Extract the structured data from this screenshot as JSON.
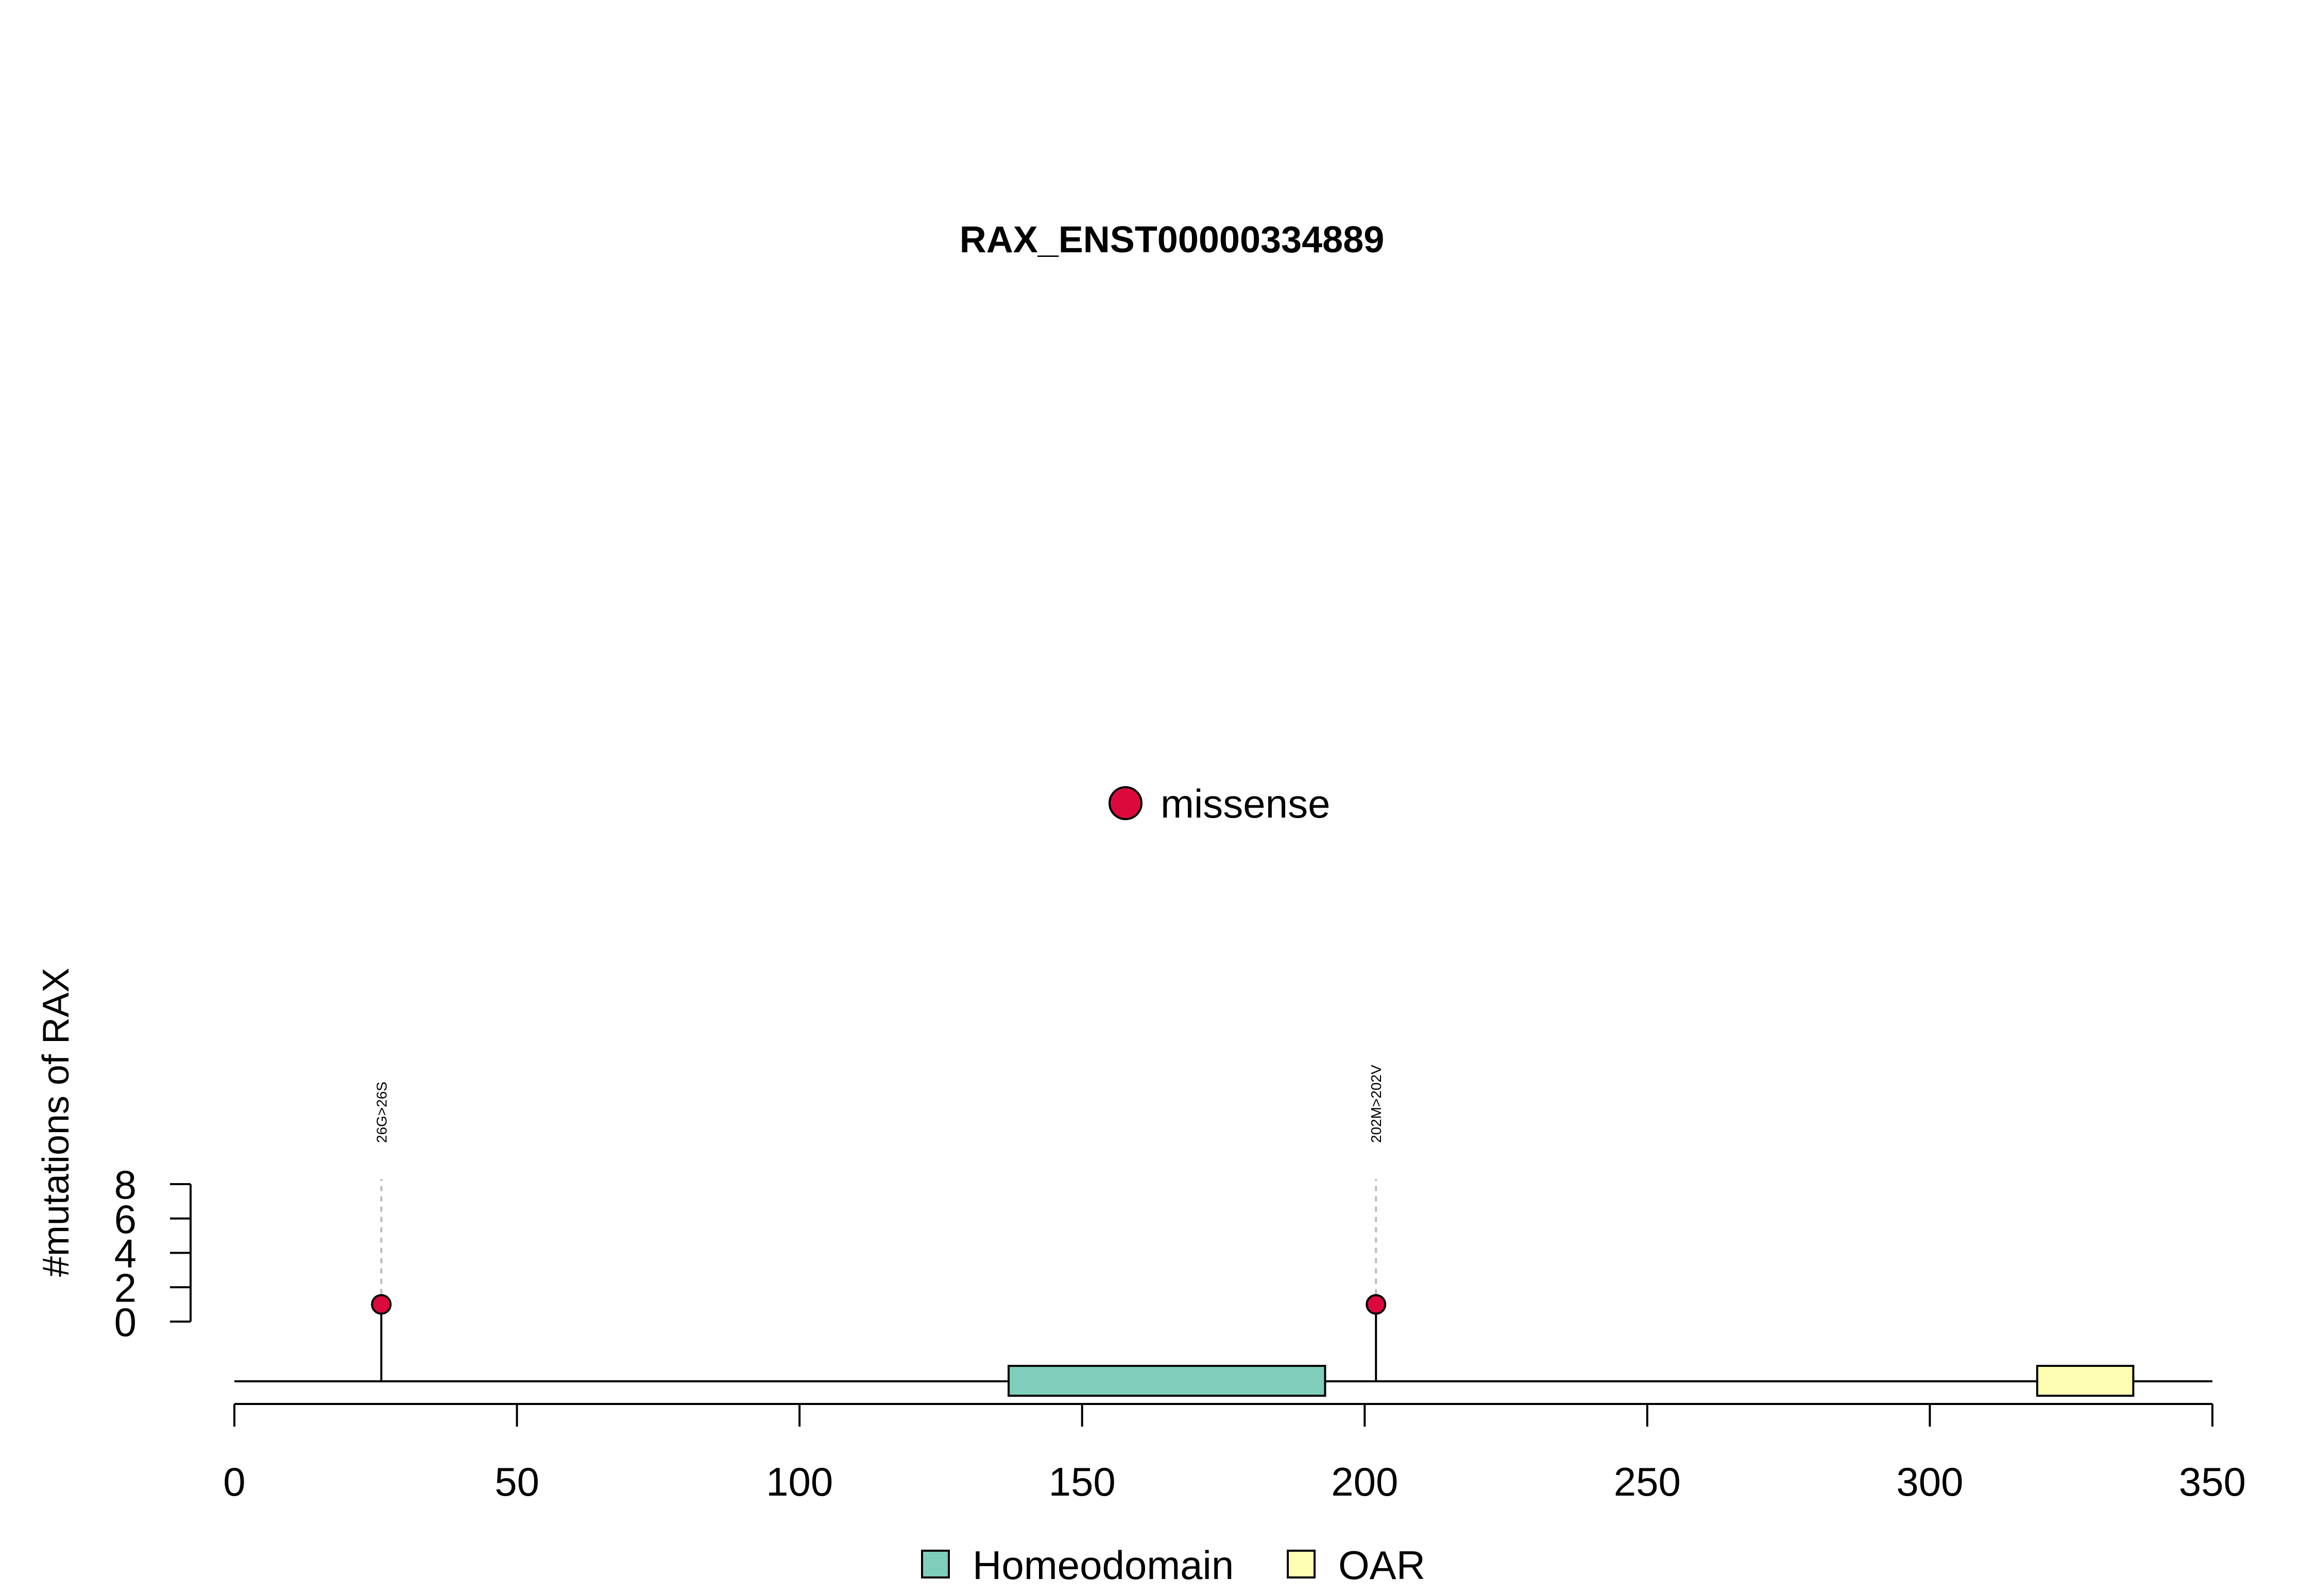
{
  "chart_data": {
    "type": "lollipop",
    "title": "RAX_ENST00000334889",
    "ylabel": "#mutations of RAX",
    "xlim": [
      0,
      350
    ],
    "x_ticks": [
      "0",
      "50",
      "100",
      "150",
      "200",
      "250",
      "300",
      "350"
    ],
    "y_ticks": [
      "0",
      "2",
      "4",
      "6",
      "8"
    ],
    "ylim": [
      0,
      8
    ],
    "protein_length": 350,
    "mutations": [
      {
        "position": 26,
        "count": 1,
        "label": "26G>26S",
        "type": "missense"
      },
      {
        "position": 202,
        "count": 1,
        "label": "202M>202V",
        "type": "missense"
      }
    ],
    "domains": [
      {
        "name": "Homeodomain",
        "start": 137,
        "end": 193,
        "color": "#7fcdbb"
      },
      {
        "name": "OAR",
        "start": 319,
        "end": 336,
        "color": "#ffffb3"
      }
    ],
    "mutation_legend": [
      {
        "label": "missense",
        "color": "#dc0a3c"
      }
    ],
    "domain_legend": [
      {
        "label": "Homeodomain",
        "color": "#7fcdbb"
      },
      {
        "label": "OAR",
        "color": "#ffffb3"
      }
    ]
  }
}
